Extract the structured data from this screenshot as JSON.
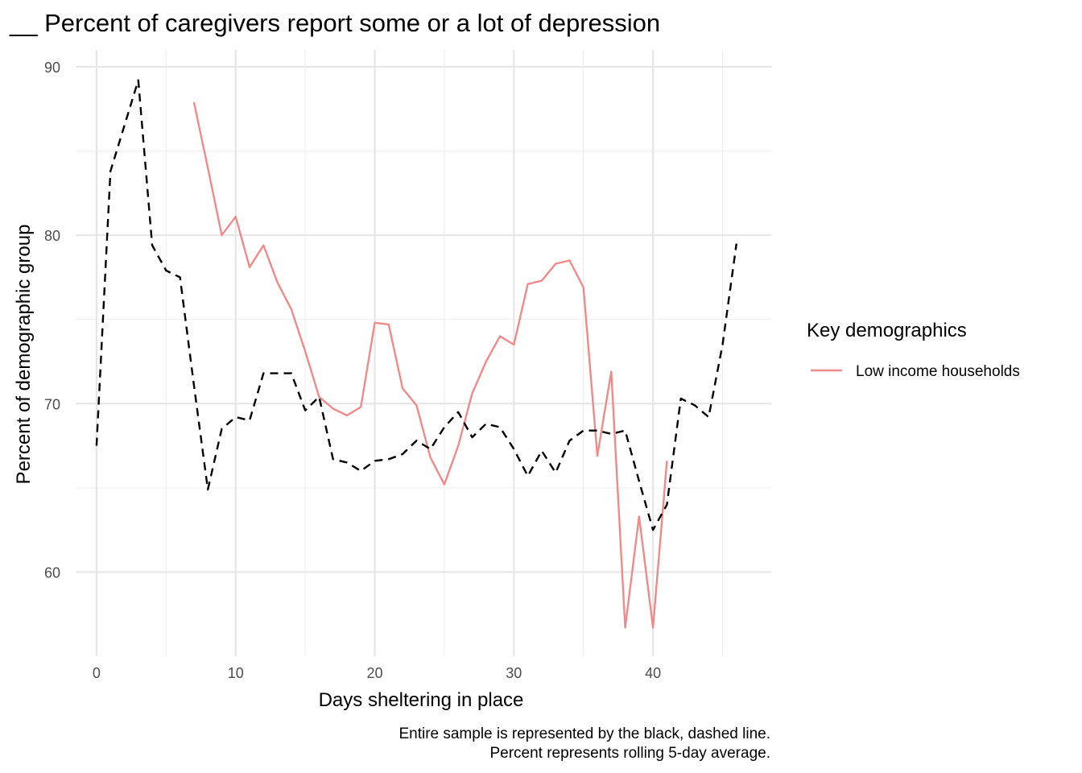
{
  "chart_data": {
    "type": "line",
    "title": "__ Percent of caregivers report some or a lot of depression",
    "xlabel": "Days sheltering in place",
    "ylabel": "Percent of demographic group",
    "xlim": [
      -1.5,
      48.5
    ],
    "ylim": [
      55.0,
      91.0
    ],
    "x_ticks": [
      0,
      10,
      20,
      30,
      40
    ],
    "y_ticks": [
      60,
      70,
      80,
      90
    ],
    "x_tick_labels": [
      "0",
      "10",
      "20",
      "30",
      "40"
    ],
    "y_tick_labels": [
      "60",
      "70",
      "80",
      "90"
    ],
    "grid": true,
    "legend": {
      "title": "Key demographics",
      "position": "right"
    },
    "caption": [
      "Entire sample is represented by the black, dashed line.",
      "Percent represents rolling 5-day average."
    ],
    "series": [
      {
        "name": "Low income households",
        "color": "#f08a8a",
        "dash": "solid",
        "x": [
          7,
          8,
          9,
          10,
          11,
          12,
          13,
          14,
          15,
          16,
          17,
          18,
          19,
          20,
          21,
          22,
          23,
          24,
          25,
          26,
          27,
          28,
          29,
          30,
          31,
          32,
          33,
          34,
          35,
          36,
          37,
          38,
          39,
          40,
          41
        ],
        "y": [
          87.9,
          84.0,
          80.0,
          81.1,
          78.1,
          79.4,
          77.2,
          75.6,
          73.1,
          70.4,
          69.7,
          69.3,
          69.8,
          74.8,
          74.7,
          70.9,
          69.9,
          66.8,
          65.2,
          67.5,
          70.6,
          72.5,
          74.0,
          73.5,
          77.1,
          77.3,
          78.3,
          78.5,
          76.9,
          66.9,
          71.9,
          56.7,
          63.3,
          56.7,
          66.6
        ]
      },
      {
        "color": "#000000",
        "dash": "dashed",
        "x": [
          0,
          1,
          2,
          3,
          4,
          5,
          6,
          7,
          8,
          9,
          10,
          11,
          12,
          13,
          14,
          15,
          16,
          17,
          18,
          19,
          20,
          21,
          22,
          23,
          24,
          25,
          26,
          27,
          28,
          29,
          30,
          31,
          32,
          33,
          34,
          35,
          36,
          37,
          38,
          39,
          40,
          41,
          42,
          43,
          44,
          45,
          46
        ],
        "y": [
          67.5,
          83.8,
          86.5,
          89.2,
          79.4,
          77.9,
          77.5,
          71.1,
          64.9,
          68.5,
          69.2,
          69.0,
          71.8,
          71.8,
          71.8,
          69.6,
          70.4,
          66.7,
          66.5,
          66.0,
          66.6,
          66.7,
          67.0,
          67.8,
          67.3,
          68.6,
          69.5,
          68.0,
          68.8,
          68.6,
          67.3,
          65.7,
          67.2,
          65.9,
          67.8,
          68.4,
          68.4,
          68.2,
          68.4,
          65.4,
          62.5,
          64.0,
          70.3,
          69.9,
          69.2,
          73.5,
          79.5
        ]
      }
    ]
  }
}
